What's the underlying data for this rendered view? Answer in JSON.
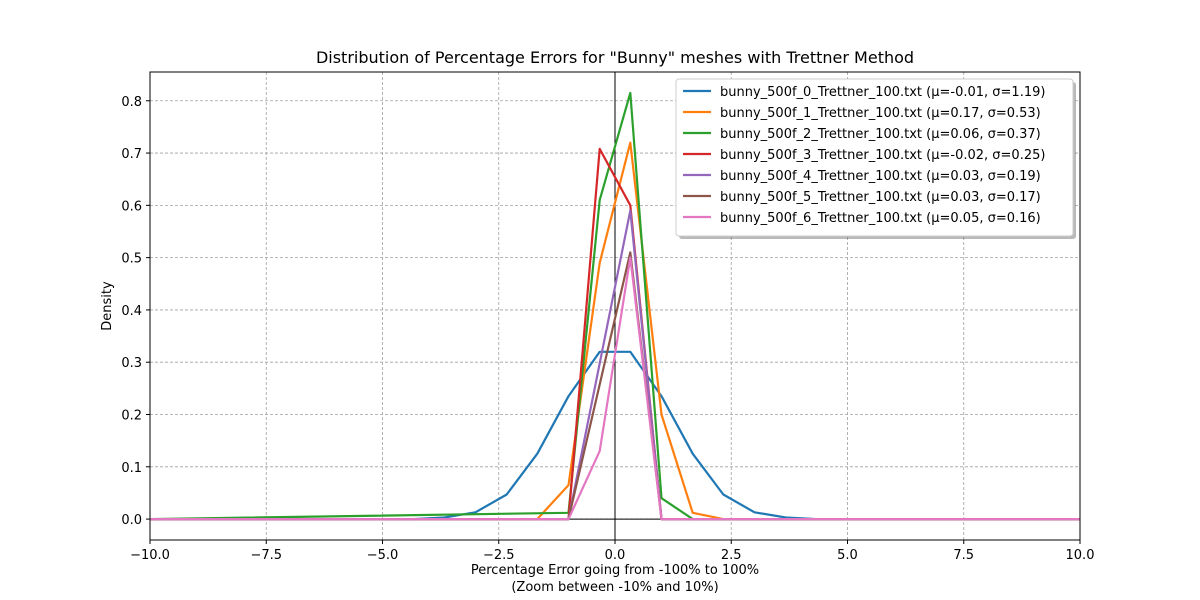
{
  "chart_data": {
    "type": "line",
    "title": "Distribution of Percentage Errors for \"Bunny\" meshes with Trettner Method",
    "xlabel": "Percentage Error going from -100% to 100%",
    "xlabel_sub": "(Zoom between -10% and 10%)",
    "ylabel": "Density",
    "xlim": [
      -10,
      10
    ],
    "ylim": [
      -0.04,
      0.855
    ],
    "x_ticks": [
      -10.0,
      -7.5,
      -5.0,
      -2.5,
      0.0,
      2.5,
      5.0,
      7.5,
      10.0
    ],
    "x_tick_labels": [
      "−10.0",
      "−7.5",
      "−5.0",
      "−2.5",
      "0.0",
      "2.5",
      "5.0",
      "7.5",
      "10.0"
    ],
    "y_ticks": [
      0.0,
      0.1,
      0.2,
      0.3,
      0.4,
      0.5,
      0.6,
      0.7,
      0.8
    ],
    "y_tick_labels": [
      "0.0",
      "0.1",
      "0.2",
      "0.3",
      "0.4",
      "0.5",
      "0.6",
      "0.7",
      "0.8"
    ],
    "grid": true,
    "grid_style": "dashed",
    "reference_lines": {
      "x": 0,
      "y": 0
    },
    "legend_position": "upper right",
    "series": [
      {
        "name": "bunny_500f_0_Trettner_100.txt (μ=-0.01, σ=1.19)",
        "color": "#1f77b4",
        "x": [
          -10,
          -4.33,
          -3.67,
          -3.0,
          -2.33,
          -1.67,
          -1.0,
          -0.33,
          0.33,
          1.0,
          1.67,
          2.33,
          3.0,
          3.67,
          4.33,
          10
        ],
        "y": [
          0,
          0,
          0.003,
          0.013,
          0.047,
          0.125,
          0.235,
          0.32,
          0.32,
          0.235,
          0.125,
          0.047,
          0.013,
          0.003,
          0,
          0
        ]
      },
      {
        "name": "bunny_500f_1_Trettner_100.txt (μ=0.17, σ=0.53)",
        "color": "#ff7f0e",
        "x": [
          -10,
          -1.67,
          -1.0,
          -0.33,
          0.33,
          1.0,
          1.67,
          2.33,
          10
        ],
        "y": [
          0,
          0,
          0.065,
          0.49,
          0.72,
          0.2,
          0.012,
          0,
          0
        ]
      },
      {
        "name": "bunny_500f_2_Trettner_100.txt (μ=0.06, σ=0.37)",
        "color": "#2ca02c",
        "x": [
          -10,
          -1.0,
          -0.33,
          0.33,
          1.0,
          1.67,
          10
        ],
        "y": [
          0,
          0.012,
          0.61,
          0.815,
          0.04,
          0,
          0
        ]
      },
      {
        "name": "bunny_500f_3_Trettner_100.txt (μ=-0.02, σ=0.25)",
        "color": "#d62728",
        "x": [
          -10,
          -1.0,
          -0.33,
          0.33,
          1.0,
          10
        ],
        "y": [
          0,
          0,
          0.708,
          0.6,
          0,
          0
        ]
      },
      {
        "name": "bunny_500f_4_Trettner_100.txt (μ=0.03, σ=0.19)",
        "color": "#9467bd",
        "x": [
          -10,
          -1.0,
          0.33,
          1.0,
          10
        ],
        "y": [
          0,
          0,
          0.59,
          0,
          0
        ]
      },
      {
        "name": "bunny_500f_5_Trettner_100.txt (μ=0.03, σ=0.17)",
        "color": "#8c564b",
        "x": [
          -10,
          -1.0,
          0.33,
          1.0,
          10
        ],
        "y": [
          0,
          0,
          0.51,
          0,
          0
        ]
      },
      {
        "name": "bunny_500f_6_Trettner_100.txt (μ=0.05, σ=0.16)",
        "color": "#e377c2",
        "x": [
          -10,
          -1.0,
          -0.33,
          0.33,
          1.0,
          10
        ],
        "y": [
          0,
          0,
          0.13,
          0.5,
          0,
          0
        ]
      }
    ]
  }
}
